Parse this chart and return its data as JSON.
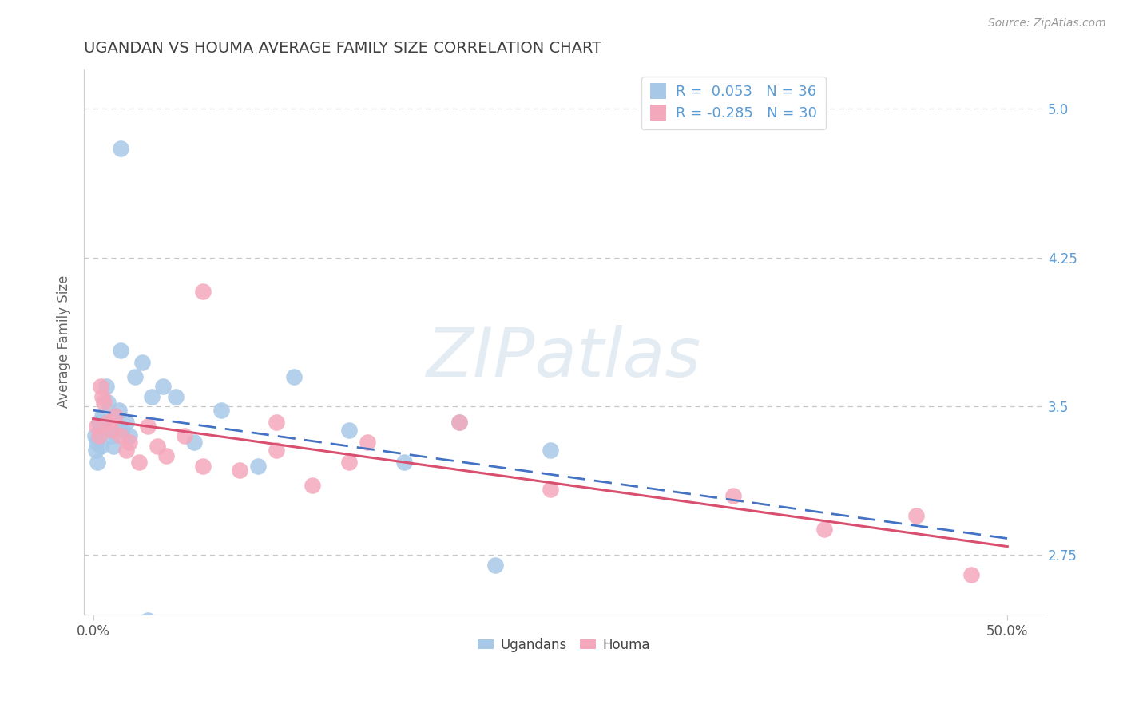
{
  "title": "UGANDAN VS HOUMA AVERAGE FAMILY SIZE CORRELATION CHART",
  "source": "Source: ZipAtlas.com",
  "ylabel": "Average Family Size",
  "xlim": [
    -0.5,
    52
  ],
  "ylim": [
    2.45,
    5.2
  ],
  "yticks": [
    2.75,
    3.5,
    4.25,
    5.0
  ],
  "xtick_labels": [
    "0.0%",
    "50.0%"
  ],
  "ugandan_color": "#A8C8E8",
  "houma_color": "#F4A8BC",
  "trend_ugandan_color": "#4472C4",
  "trend_houma_color": "#D94F70",
  "ugandan_R": 0.053,
  "ugandan_N": 36,
  "houma_R": -0.285,
  "houma_N": 30,
  "legend_label_ugandan": "Ugandans",
  "legend_label_houma": "Houma",
  "background_color": "#FFFFFF",
  "grid_color": "#C8C8C8",
  "title_color": "#404040",
  "axis_label_color": "#5B9BD5",
  "watermark": "ZIPatlas",
  "ugandan_x": [
    0.1,
    0.15,
    0.2,
    0.25,
    0.3,
    0.35,
    0.4,
    0.5,
    0.6,
    0.7,
    0.8,
    0.9,
    1.0,
    1.1,
    1.2,
    1.4,
    1.6,
    1.8,
    2.0,
    2.3,
    2.7,
    3.2,
    3.8,
    1.5,
    4.5,
    5.5,
    7.0,
    9.0,
    11.0,
    14.0,
    17.0,
    20.0,
    22.0,
    25.0,
    1.5,
    3.0
  ],
  "ugandan_y": [
    3.35,
    3.28,
    3.32,
    3.22,
    3.42,
    3.38,
    3.3,
    3.45,
    3.42,
    3.6,
    3.52,
    3.38,
    3.35,
    3.3,
    3.45,
    3.48,
    3.38,
    3.42,
    3.35,
    3.65,
    3.72,
    3.55,
    3.6,
    3.78,
    3.55,
    3.32,
    3.48,
    3.2,
    3.65,
    3.38,
    3.22,
    3.42,
    2.7,
    3.28,
    4.8,
    2.42
  ],
  "houma_x": [
    0.2,
    0.3,
    0.4,
    0.5,
    0.6,
    0.8,
    1.0,
    1.2,
    1.5,
    1.8,
    2.0,
    2.5,
    3.0,
    3.5,
    4.0,
    5.0,
    6.0,
    8.0,
    10.0,
    12.0,
    14.0,
    6.0,
    25.0,
    35.0,
    40.0,
    45.0,
    20.0,
    15.0,
    10.0,
    48.0
  ],
  "houma_y": [
    3.4,
    3.35,
    3.6,
    3.55,
    3.52,
    3.42,
    3.38,
    3.45,
    3.35,
    3.28,
    3.32,
    3.22,
    3.4,
    3.3,
    3.25,
    3.35,
    3.2,
    3.18,
    3.28,
    3.1,
    3.22,
    4.08,
    3.08,
    3.05,
    2.88,
    2.95,
    3.42,
    3.32,
    3.42,
    2.65
  ],
  "trend_ugandan_start_x": 0,
  "trend_ugandan_end_x": 50,
  "trend_houma_start_x": 0,
  "trend_houma_end_x": 50
}
